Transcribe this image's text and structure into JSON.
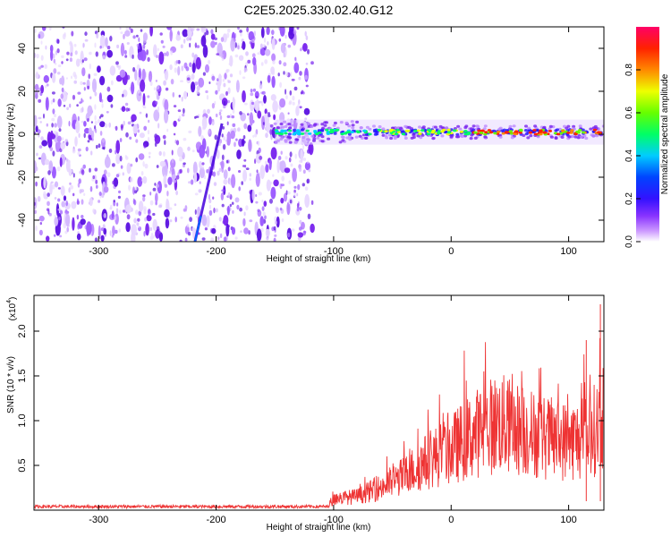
{
  "title": "C2E5.2025.330.02.40.G12",
  "colors": {
    "snr_line": "#ee3333",
    "spectrogram_background": "#ffffff",
    "noise_dots": "#7722ee"
  },
  "chart_data": [
    {
      "type": "heatmap",
      "name": "spectrogram",
      "xlabel": "Height of straight line (km)",
      "ylabel": "Frequency (Hz)",
      "xlim": [
        -355,
        130
      ],
      "ylim": [
        -50,
        50
      ],
      "x_ticks": [
        -300,
        -200,
        -100,
        0,
        100
      ],
      "y_ticks": [
        -40,
        -20,
        0,
        20,
        40
      ],
      "noise_region_x": [
        -355,
        -118
      ],
      "signal_region_x": [
        -150,
        130
      ],
      "signal_frequency_hz": 1,
      "faint_trace": {
        "x_start": -218,
        "y_start": -50,
        "x_end": -195,
        "y_end": 5
      },
      "colorbar": {
        "label": "Normalized spectral amplitude",
        "range": [
          0.0,
          1.0
        ],
        "ticks": [
          0.0,
          0.2,
          0.4,
          0.6,
          0.8
        ],
        "tick_labels": [
          "0.0",
          "0.2",
          "0.4",
          "0.6",
          "0.8"
        ]
      }
    },
    {
      "type": "line",
      "name": "snr",
      "xlabel": "Height of straight line (km)",
      "ylabel": "SNR (10 * v/v)",
      "y_multiplier_label": "(x10",
      "y_multiplier_exp": "4",
      "xlim": [
        -355,
        130
      ],
      "ylim": [
        0,
        2.4
      ],
      "x_ticks": [
        -300,
        -200,
        -100,
        0,
        100
      ],
      "y_ticks": [
        0.5,
        1.0,
        1.5,
        2.0
      ],
      "y_tick_labels": [
        "0.5",
        "1.0",
        "1.5",
        "2.0"
      ],
      "envelope": {
        "x": [
          -355,
          -250,
          -105,
          -100,
          -80,
          -60,
          -40,
          -20,
          0,
          20,
          40,
          60,
          80,
          100,
          115,
          125,
          130
        ],
        "y": [
          0.04,
          0.04,
          0.04,
          0.15,
          0.18,
          0.3,
          0.45,
          0.65,
          0.8,
          1.0,
          1.15,
          1.05,
          0.95,
          0.9,
          0.95,
          1.1,
          1.3
        ]
      },
      "peaks": [
        {
          "x": 115,
          "y": 1.9
        },
        {
          "x": 127,
          "y": 2.3
        }
      ]
    }
  ]
}
